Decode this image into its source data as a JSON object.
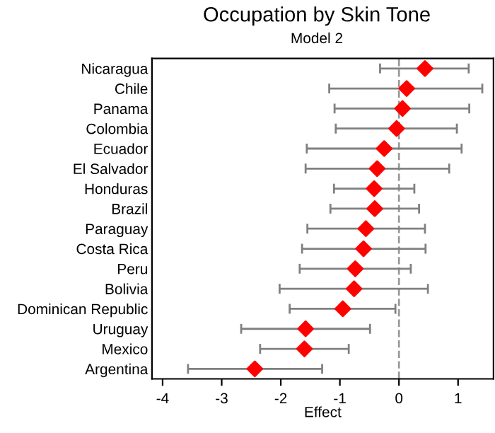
{
  "chart_data": {
    "type": "scatter",
    "orientation": "horizontal",
    "title": "Occupation by Skin Tone",
    "subtitle": "Model 2",
    "xlabel": "Effect",
    "categories": [
      "Nicaragua",
      "Chile",
      "Panama",
      "Colombia",
      "Ecuador",
      "El Salvador",
      "Honduras",
      "Brazil",
      "Paraguay",
      "Costa Rica",
      "Peru",
      "Bolivia",
      "Dominican Republic",
      "Uruguay",
      "Mexico",
      "Argentina"
    ],
    "color": "#ff0000",
    "values": [
      0.44,
      0.13,
      0.06,
      -0.04,
      -0.25,
      -0.37,
      -0.42,
      -0.41,
      -0.56,
      -0.6,
      -0.74,
      -0.76,
      -0.95,
      -1.58,
      -1.6,
      -2.44
    ],
    "errors": [
      [
        -0.32,
        1.18
      ],
      [
        -1.18,
        1.41
      ],
      [
        -1.09,
        1.19
      ],
      [
        -1.07,
        0.98
      ],
      [
        -1.56,
        1.06
      ],
      [
        -1.58,
        0.85
      ],
      [
        -1.1,
        0.26
      ],
      [
        -1.16,
        0.34
      ],
      [
        -1.55,
        0.44
      ],
      [
        -1.64,
        0.45
      ],
      [
        -1.68,
        0.2
      ],
      [
        -2.02,
        0.49
      ],
      [
        -1.85,
        -0.06
      ],
      [
        -2.67,
        -0.49
      ],
      [
        -2.35,
        -0.85
      ],
      [
        -3.57,
        -1.3
      ]
    ],
    "grid": false,
    "legend": false,
    "xlim": [
      -4.18,
      1.6
    ],
    "xticks": [
      -4,
      -3,
      -2,
      -1,
      0,
      1
    ],
    "ref_lines": [
      {
        "axis": "x",
        "value": 0,
        "color": "#999999",
        "line_style": "dashed"
      }
    ],
    "marker": "diamond"
  }
}
